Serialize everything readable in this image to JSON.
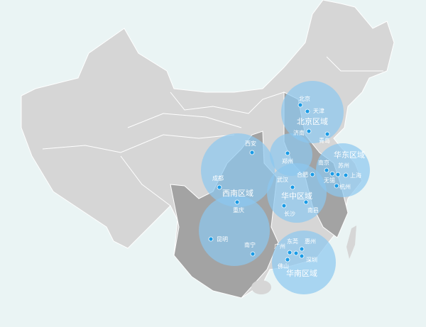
{
  "colors": {
    "background": "#eaf4f4",
    "land": "#d6d6d6",
    "land_highlight": "#a3a3a3",
    "region_circle": "#8cc8f0",
    "city_dot": "#1a9be6",
    "border": "#ffffff"
  },
  "regions": [
    {
      "name": "北京区域",
      "cities": [
        "北京",
        "天津",
        "济南",
        "青岛"
      ]
    },
    {
      "name": "华东区域",
      "cities": [
        "南京",
        "无锡",
        "苏州",
        "上海",
        "杭州"
      ]
    },
    {
      "name": "华中区域",
      "cities": [
        "郑州",
        "合肥",
        "武汉",
        "长沙",
        "南昌"
      ]
    },
    {
      "name": "西南区域",
      "cities": [
        "西安",
        "成都",
        "重庆",
        "昆明",
        "南宁"
      ]
    },
    {
      "name": "华南区域",
      "cities": [
        "广州",
        "东莞",
        "惠州",
        "深圳",
        "佛山"
      ]
    }
  ]
}
